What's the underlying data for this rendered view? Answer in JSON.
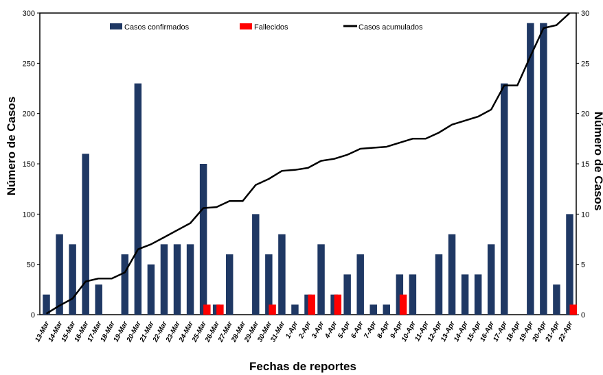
{
  "chart_data": {
    "type": "bar",
    "xlabel": "Fechas de reportes",
    "ylabel": "Número de Casos",
    "y2label": "Número de Casos",
    "ylim": [
      0,
      300
    ],
    "y2lim": [
      0,
      30
    ],
    "yticks": [
      0,
      50,
      100,
      150,
      200,
      250,
      300
    ],
    "y2ticks": [
      0,
      5,
      10,
      15,
      20,
      25,
      30
    ],
    "legend_position": "top",
    "categories": [
      "13-Mar",
      "14-Mar",
      "15-Mar",
      "16-Mar",
      "17-Mar",
      "18-Mar",
      "19-Mar",
      "20-Mar",
      "21-Mar",
      "22-Mar",
      "23-Mar",
      "24-Mar",
      "25-Mar",
      "26-Mar",
      "27-Mar",
      "28-Mar",
      "29-Mar",
      "30-Mar",
      "31-Mar",
      "1-Apr",
      "2-Apr",
      "3-Apr",
      "4-Apr",
      "5-Apr",
      "6-Apr",
      "7-Apr",
      "8-Apr",
      "9-Apr",
      "10-Apr",
      "11-Apr",
      "12-Apr",
      "13-Apr",
      "14-Apr",
      "15-Apr",
      "16-Apr",
      "17-Apr",
      "18-Apr",
      "19-Apr",
      "20-Apr",
      "21-Apr",
      "22-Apr"
    ],
    "series": [
      {
        "name": "Casos confirmados",
        "type": "bar",
        "axis": "left",
        "color": "#1f3864",
        "values": [
          20,
          80,
          70,
          160,
          30,
          0,
          60,
          230,
          50,
          70,
          70,
          70,
          150,
          10,
          60,
          0,
          100,
          60,
          80,
          10,
          20,
          70,
          20,
          40,
          60,
          10,
          10,
          40,
          40,
          0,
          60,
          80,
          40,
          40,
          70,
          230,
          0,
          290,
          290,
          30,
          100
        ]
      },
      {
        "name": "Fallecidos",
        "type": "bar",
        "axis": "left",
        "color": "#ff0000",
        "values": [
          0,
          0,
          0,
          0,
          0,
          0,
          0,
          0,
          0,
          0,
          0,
          0,
          10,
          10,
          0,
          0,
          0,
          10,
          0,
          0,
          20,
          0,
          20,
          0,
          0,
          0,
          0,
          20,
          0,
          0,
          0,
          0,
          0,
          0,
          0,
          0,
          0,
          0,
          0,
          0,
          10
        ]
      },
      {
        "name": "Casos acumulados",
        "type": "line",
        "axis": "right",
        "color": "#000000",
        "values": [
          0.1,
          0.9,
          1.6,
          3.3,
          3.6,
          3.6,
          4.2,
          6.5,
          7.0,
          7.7,
          8.4,
          9.1,
          10.6,
          10.7,
          11.3,
          11.3,
          12.9,
          13.5,
          14.3,
          14.4,
          14.6,
          15.3,
          15.5,
          15.9,
          16.5,
          16.6,
          16.7,
          17.1,
          17.5,
          17.5,
          18.1,
          18.9,
          19.3,
          19.7,
          20.4,
          22.8,
          22.8,
          25.7,
          28.5,
          28.8,
          30.0
        ]
      }
    ]
  }
}
